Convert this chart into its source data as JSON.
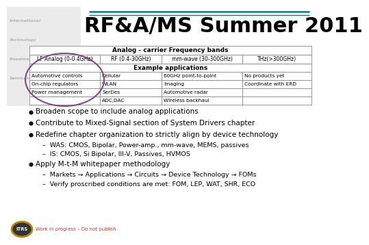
{
  "title": "RF&A/MS Summer 2011",
  "bg_color": "#ffffff",
  "table_header": "Analog - carrier Frequency bands",
  "freq_bands": [
    "LF Analog (0-0.4GHz)",
    "RF (0.4-30GHz)",
    "mm-wave (30-300GHz)",
    "THz(>300GHz)"
  ],
  "example_header": "Example applications",
  "table_data": [
    [
      "Automotive controls",
      "Cellular",
      "60GHz point-to-point",
      "No products yet"
    ],
    [
      "On-chip regulators",
      "WLAN",
      "Imaging",
      "Coordinate with ERD"
    ],
    [
      "Power management",
      "SerDes",
      "Automotive radar",
      ""
    ],
    [
      "",
      "ADC,DAC",
      "Wireless backhaul",
      ""
    ]
  ],
  "bullets": [
    "Broaden scope to include analog applications",
    "Contribute to Mixed-Signal section of System Drivers chapter",
    "Redefine chapter organization to strictly align by device technology",
    "Apply M-t-M whitepaper methodology"
  ],
  "sub_bullets_3": [
    "–  WAS: CMOS, Bipolar, Power-amp., mm-wave, MEMS, passives",
    "–  IS: CMOS, Si Bipolar, III-V, Passives, HVMOS"
  ],
  "sub_bullets_4": [
    "–  Markets → Applications → Circuits → Device Technology → FOMs",
    "–  Verify proscribed conditions are met: FOM, LEP, WAT, SHR, ECO"
  ],
  "footer_text": "Work in progress – Do not publish",
  "table_border_color": "#888888",
  "circle_color": "#884488",
  "header_line_color": "#008080",
  "title_fontsize": 22,
  "bullet_fontsize": 7.5,
  "sub_fontsize": 6.8,
  "table_fontsize": 5.8,
  "table_header_fontsize": 6.5
}
